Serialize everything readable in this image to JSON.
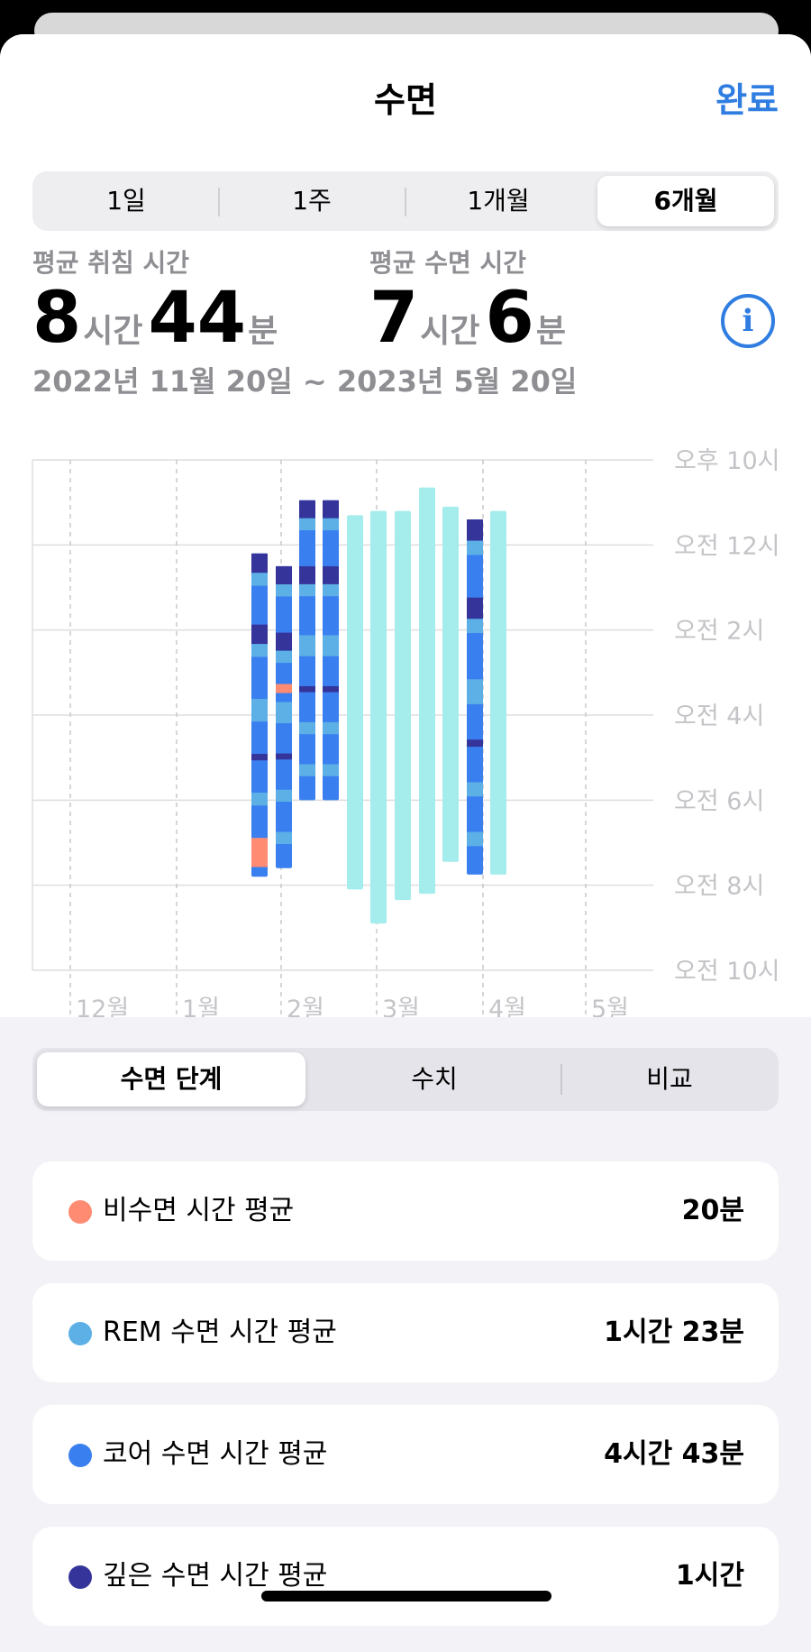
{
  "header": {
    "title": "수면",
    "done_label": "완료"
  },
  "range_tabs": [
    "1일",
    "1주",
    "1개월",
    "6개월"
  ],
  "selected_range_tab": 3,
  "stats": {
    "bedtime": {
      "label": "평균 취침 시간",
      "hours": "8",
      "hours_unit": "시간",
      "minutes": "44",
      "minutes_unit": "분"
    },
    "asleep": {
      "label": "평균 수면 시간",
      "hours": "7",
      "hours_unit": "시간",
      "minutes": "6",
      "minutes_unit": "분"
    },
    "info_icon": "info-circle-icon"
  },
  "date_range": "2022년 11월 20일 ~ 2023년 5월 20일",
  "chart_data": {
    "type": "bar",
    "description_note": "",
    "y_tick_labels": [
      "오후 10시",
      "오전 12시",
      "오전 2시",
      "오전 4시",
      "오전 6시",
      "오전 8시",
      "오전 10시"
    ],
    "x_tick_labels": [
      "12월",
      "1월",
      "2월",
      "3월",
      "4월",
      "5월"
    ],
    "y_range_hours_after_10pm": [
      0,
      12
    ],
    "bars": [
      {
        "start_h": 2.2,
        "end_h": 9.8,
        "kind": "stages"
      },
      {
        "start_h": 2.5,
        "end_h": 9.6,
        "kind": "stages"
      },
      {
        "start_h": 0.95,
        "end_h": 8.0,
        "kind": "stages"
      },
      {
        "start_h": 0.95,
        "end_h": 8.0,
        "kind": "stages"
      },
      {
        "start_h": 1.3,
        "end_h": 10.1,
        "kind": "asleep"
      },
      {
        "start_h": 1.2,
        "end_h": 10.9,
        "kind": "asleep"
      },
      {
        "start_h": 1.2,
        "end_h": 10.35,
        "kind": "asleep"
      },
      {
        "start_h": 0.65,
        "end_h": 10.2,
        "kind": "asleep"
      },
      {
        "start_h": 1.1,
        "end_h": 9.45,
        "kind": "asleep"
      },
      {
        "start_h": 1.4,
        "end_h": 9.75,
        "kind": "stages"
      },
      {
        "start_h": 1.2,
        "end_h": 9.75,
        "kind": "asleep"
      }
    ],
    "colors": {
      "awake": "#fe8b72",
      "rem": "#5cb0e6",
      "core": "#3a7ff0",
      "deep": "#35349a",
      "asleep": "#a5ecec"
    }
  },
  "detail_tabs": [
    "수면 단계",
    "수치",
    "비교"
  ],
  "selected_detail_tab": 0,
  "summary": [
    {
      "label": "비수면 시간 평균",
      "value": "20분",
      "color": "#fe8b72"
    },
    {
      "label": "REM 수면 시간 평균",
      "value": "1시간 23분",
      "color": "#5cb0e6"
    },
    {
      "label": "코어 수면 시간 평균",
      "value": "4시간 43분",
      "color": "#3a7ff0"
    },
    {
      "label": "깊은 수면 시간 평균",
      "value": "1시간",
      "color": "#35349a"
    }
  ]
}
